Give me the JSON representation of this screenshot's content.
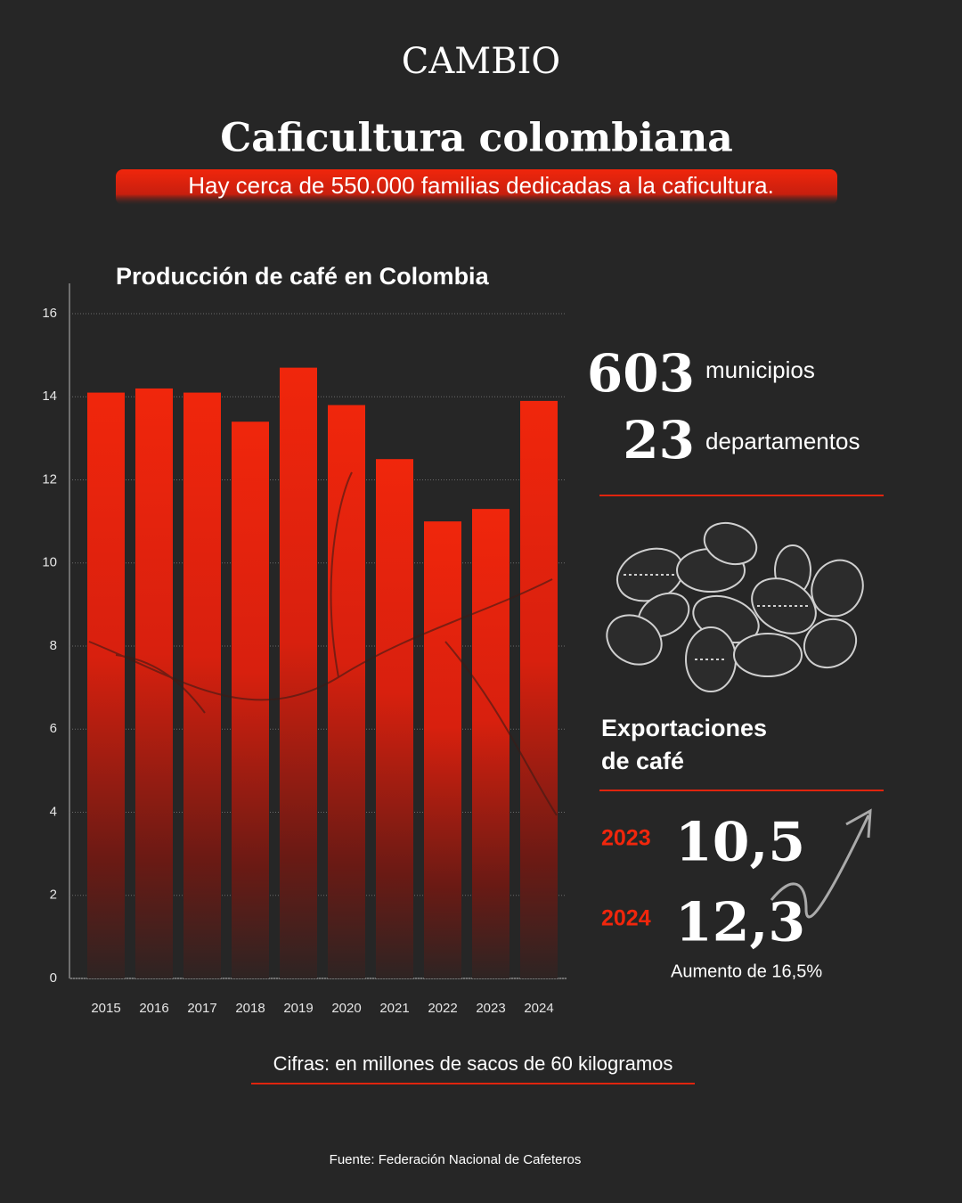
{
  "brand": "CAMBIO",
  "title": "Caficultura colombiana",
  "subtitle": "Hay cerca de 550.000 familias dedicadas a la caficultura.",
  "chart_data": {
    "type": "bar",
    "title": "Producción de café en Colombia",
    "categories": [
      "2015",
      "2016",
      "2017",
      "2018",
      "2019",
      "2020",
      "2021",
      "2022",
      "2023",
      "2024"
    ],
    "values": [
      14.1,
      14.2,
      14.1,
      13.4,
      14.7,
      13.8,
      12.5,
      11.0,
      11.3,
      13.9
    ],
    "color": "#f0260c",
    "ylim": [
      0,
      16
    ],
    "yticks": [
      0,
      2,
      4,
      6,
      8,
      10,
      12,
      14,
      16
    ],
    "grid": true
  },
  "stats": [
    {
      "value": 603,
      "label": "municipios"
    },
    {
      "value": 23,
      "label": "departamentos"
    }
  ],
  "exports": {
    "title": [
      "Exportaciones",
      "de café"
    ],
    "rows": [
      {
        "year": 2023,
        "value": "10,5"
      },
      {
        "year": 2024,
        "value": "12,3"
      }
    ],
    "note": "Aumento de 16,5%"
  },
  "units_note": "Cifras: en millones de sacos de 60 kilogramos",
  "source": "Fuente: Federación Nacional de Cafeteros"
}
